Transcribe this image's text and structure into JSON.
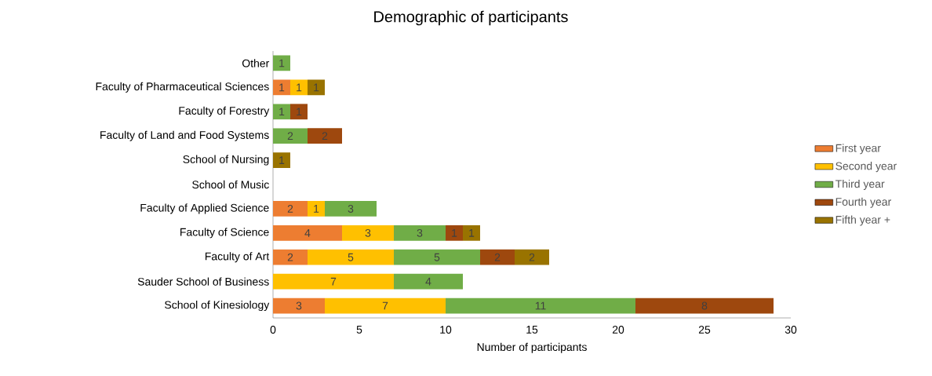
{
  "chart_data": {
    "type": "bar",
    "orientation": "horizontal",
    "stacked": true,
    "title": "Demographic of participants",
    "xlabel": "Number of participants",
    "categories": [
      "Other",
      "Faculty of Pharmaceutical Sciences",
      "Faculty of Forestry",
      "Faculty of Land and Food Systems",
      "School of Nursing",
      "School of Music",
      "Faculty of Applied Science",
      "Faculty of Science",
      "Faculty of Art",
      "Sauder School of Business",
      "School of Kinesiology"
    ],
    "series": [
      {
        "name": "First year",
        "color": "#ed7d31",
        "values": [
          null,
          1,
          null,
          null,
          null,
          null,
          2,
          4,
          2,
          null,
          3
        ]
      },
      {
        "name": "Second year",
        "color": "#ffc000",
        "values": [
          null,
          1,
          null,
          null,
          null,
          null,
          1,
          3,
          5,
          7,
          7
        ]
      },
      {
        "name": "Third year",
        "color": "#70ad47",
        "values": [
          1,
          null,
          1,
          2,
          null,
          null,
          3,
          3,
          5,
          4,
          11
        ]
      },
      {
        "name": "Fourth year",
        "color": "#9e480e",
        "values": [
          null,
          null,
          1,
          2,
          null,
          null,
          null,
          1,
          2,
          null,
          8
        ]
      },
      {
        "name": "Fifth year +",
        "color": "#997300",
        "values": [
          null,
          1,
          null,
          null,
          1,
          null,
          null,
          1,
          2,
          null,
          null
        ]
      }
    ],
    "xlim": [
      0,
      30
    ],
    "xticks": [
      0,
      5,
      10,
      15,
      20,
      25,
      30
    ],
    "legend": "right",
    "data_labels": true
  }
}
